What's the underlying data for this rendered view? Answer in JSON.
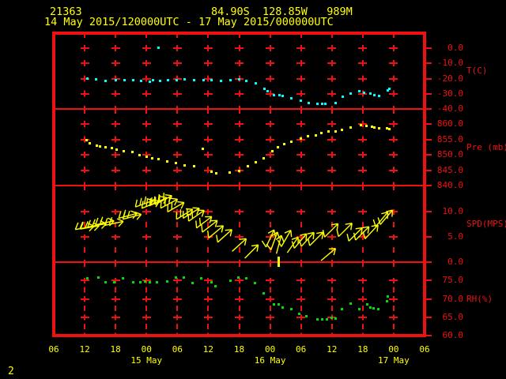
{
  "header": {
    "station_id": "21363",
    "location_line": "84.90S  128.85W   989M",
    "period": "14 May 2015/120000UTC - 17 May 2015/000000UTC"
  },
  "footer": {
    "page_label": "2"
  },
  "colors": {
    "background": "#000000",
    "grid": "#ee1111",
    "axis_text": "#ee1111",
    "time_text": "#ffff00",
    "temperature": "#00ffff",
    "pressure": "#ffff00",
    "wind": "#ffff00",
    "humidity": "#00e000"
  },
  "x_axis": {
    "start_hour": 6,
    "end_hour": 78,
    "step_hours": 6,
    "tick_labels": [
      "06",
      "12",
      "18",
      "00",
      "06",
      "12",
      "18",
      "00",
      "06",
      "12",
      "18",
      "00",
      "06"
    ],
    "date_labels": [
      {
        "text": "15 May",
        "hour": 24
      },
      {
        "text": "16 May",
        "hour": 48
      },
      {
        "text": "17 May",
        "hour": 72
      }
    ]
  },
  "panels": [
    {
      "id": "temperature",
      "unit_label": "T(C)",
      "ylim": [
        -40,
        10
      ],
      "ticks": [
        {
          "v": 0,
          "label": "0.0"
        },
        {
          "v": -10,
          "label": "-10.0"
        },
        {
          "v": -20,
          "label": "-20.0"
        },
        {
          "v": -30,
          "label": "-30.0"
        },
        {
          "v": -40,
          "label": "-40.0"
        }
      ]
    },
    {
      "id": "pressure",
      "unit_label": "Pre (mb)",
      "ylim": [
        840,
        865
      ],
      "ticks": [
        {
          "v": 860,
          "label": "860.0"
        },
        {
          "v": 855,
          "label": "855.0"
        },
        {
          "v": 850,
          "label": "850.0"
        },
        {
          "v": 845,
          "label": "845.0"
        },
        {
          "v": 840,
          "label": "840.0"
        }
      ]
    },
    {
      "id": "wind_speed",
      "unit_label": "SPD(MPS)",
      "ylim": [
        0,
        15.2
      ],
      "ticks": [
        {
          "v": 10,
          "label": "10.0"
        },
        {
          "v": 5,
          "label": "5.0"
        },
        {
          "v": 0,
          "label": "0.0"
        }
      ]
    },
    {
      "id": "humidity",
      "unit_label": "RH(%)",
      "ylim": [
        60,
        80
      ],
      "ticks": [
        {
          "v": 75,
          "label": "75.0"
        },
        {
          "v": 70,
          "label": "70.0"
        },
        {
          "v": 65,
          "label": "65.0"
        },
        {
          "v": 60,
          "label": "60.0"
        }
      ]
    }
  ],
  "chart_data": {
    "type": "scatter",
    "title": "Station meteogram 21363",
    "x_unit": "hours UTC since 14 May 2015 00:00",
    "x_range": [
      6,
      78
    ],
    "series": [
      {
        "name": "T(C)",
        "panel": "temperature",
        "style": "dots",
        "points": [
          [
            12.6,
            -19.9
          ],
          [
            14.2,
            -20.5
          ],
          [
            16.0,
            -21.3
          ],
          [
            18.0,
            -20.8
          ],
          [
            19.7,
            -20.9
          ],
          [
            21.4,
            -21.0
          ],
          [
            22.9,
            -21.7
          ],
          [
            24.6,
            -22.2
          ],
          [
            25.2,
            -21.2
          ],
          [
            26.3,
            0.4
          ],
          [
            26.7,
            -21.7
          ],
          [
            28.2,
            -21.2
          ],
          [
            29.8,
            -20.8
          ],
          [
            31.4,
            -20.5
          ],
          [
            33.3,
            -20.8
          ],
          [
            35.1,
            -21.2
          ],
          [
            36.6,
            -20.8
          ],
          [
            38.4,
            -21.7
          ],
          [
            40.3,
            -20.8
          ],
          [
            42.0,
            -20.5
          ],
          [
            43.4,
            -21.7
          ],
          [
            45.2,
            -22.9
          ],
          [
            46.9,
            -26.9
          ],
          [
            47.6,
            -28.1
          ],
          [
            48.8,
            -30.7
          ],
          [
            49.8,
            -30.9
          ],
          [
            50.4,
            -31.6
          ],
          [
            52.1,
            -33.0
          ],
          [
            53.9,
            -34.7
          ],
          [
            55.5,
            -36.1
          ],
          [
            57.2,
            -36.8
          ],
          [
            58.1,
            -36.5
          ],
          [
            58.8,
            -36.5
          ],
          [
            60.7,
            -36.1
          ],
          [
            62.1,
            -32.1
          ],
          [
            63.7,
            -29.9
          ],
          [
            65.4,
            -28.1
          ],
          [
            66.2,
            -29.2
          ],
          [
            67.5,
            -29.9
          ],
          [
            68.2,
            -30.9
          ],
          [
            69.1,
            -31.6
          ],
          [
            70.9,
            -27.6
          ],
          [
            71.2,
            -26.9
          ]
        ]
      },
      {
        "name": "Pre (mb)",
        "panel": "pressure",
        "style": "dots",
        "points": [
          [
            12.3,
            854.8
          ],
          [
            13.0,
            853.7
          ],
          [
            14.4,
            852.9
          ],
          [
            15.0,
            852.7
          ],
          [
            16.1,
            852.4
          ],
          [
            17.3,
            852.2
          ],
          [
            18.2,
            851.6
          ],
          [
            19.6,
            851.3
          ],
          [
            21.2,
            851.0
          ],
          [
            22.7,
            849.9
          ],
          [
            24.0,
            849.3
          ],
          [
            25.1,
            849.0
          ],
          [
            26.3,
            848.6
          ],
          [
            28.1,
            847.9
          ],
          [
            29.7,
            847.3
          ],
          [
            31.4,
            846.7
          ],
          [
            33.3,
            846.2
          ],
          [
            35.0,
            852.0
          ],
          [
            36.6,
            844.5
          ],
          [
            37.5,
            844.1
          ],
          [
            40.2,
            844.3
          ],
          [
            42.0,
            844.7
          ],
          [
            43.7,
            846.2
          ],
          [
            45.2,
            847.6
          ],
          [
            46.7,
            849.0
          ],
          [
            48.4,
            851.2
          ],
          [
            49.5,
            852.4
          ],
          [
            50.7,
            853.6
          ],
          [
            52.1,
            854.4
          ],
          [
            53.9,
            855.3
          ],
          [
            55.4,
            856.2
          ],
          [
            56.9,
            856.3
          ],
          [
            57.9,
            857.2
          ],
          [
            59.3,
            857.6
          ],
          [
            60.7,
            857.6
          ],
          [
            62.0,
            858.2
          ],
          [
            63.7,
            858.9
          ],
          [
            65.6,
            859.6
          ],
          [
            66.7,
            859.5
          ],
          [
            67.8,
            859.2
          ],
          [
            68.3,
            859.0
          ],
          [
            69.1,
            858.6
          ],
          [
            70.7,
            858.8
          ],
          [
            71.2,
            858.4
          ]
        ]
      },
      {
        "name": "SPD(MPS)",
        "panel": "wind_speed",
        "style": "wind-barbs",
        "calm_marker_hour": 49.6,
        "barbs": [
          [
            12.0,
            6.8,
            170,
            2
          ],
          [
            13.0,
            6.9,
            170,
            2
          ],
          [
            14.4,
            7.3,
            170,
            2
          ],
          [
            15.9,
            7.8,
            168,
            2
          ],
          [
            17.7,
            7.7,
            168,
            2
          ],
          [
            20.4,
            9.2,
            165,
            2
          ],
          [
            21.2,
            9.0,
            165,
            2
          ],
          [
            23.6,
            11.6,
            160,
            3
          ],
          [
            24.8,
            11.4,
            158,
            3
          ],
          [
            26.3,
            12.0,
            155,
            3
          ],
          [
            27.3,
            12.3,
            152,
            3
          ],
          [
            28.4,
            11.6,
            152,
            3
          ],
          [
            29.7,
            10.9,
            150,
            2
          ],
          [
            31.4,
            9.5,
            148,
            2
          ],
          [
            32.7,
            9.7,
            148,
            2
          ],
          [
            33.7,
            9.2,
            145,
            2
          ],
          [
            35.2,
            7.9,
            143,
            2
          ],
          [
            36.3,
            7.1,
            142,
            1
          ],
          [
            37.5,
            6.0,
            140,
            1
          ],
          [
            39.2,
            5.2,
            138,
            1
          ],
          [
            42.0,
            3.4,
            138,
            0
          ],
          [
            44.4,
            2.1,
            135,
            0
          ],
          [
            48.0,
            4.7,
            115,
            1
          ],
          [
            48.8,
            4.2,
            110,
            1
          ],
          [
            49.7,
            3.5,
            105,
            0
          ],
          [
            51.1,
            4.7,
            120,
            1
          ],
          [
            52.4,
            3.4,
            125,
            0
          ],
          [
            53.9,
            4.2,
            130,
            1
          ],
          [
            55.3,
            4.5,
            132,
            1
          ],
          [
            57.0,
            4.6,
            135,
            1
          ],
          [
            59.3,
            1.5,
            140,
            0
          ],
          [
            59.9,
            6.3,
            135,
            1
          ],
          [
            62.6,
            6.4,
            135,
            1
          ],
          [
            64.6,
            5.5,
            135,
            1
          ],
          [
            65.9,
            5.7,
            135,
            1
          ],
          [
            67.7,
            6.0,
            133,
            1
          ],
          [
            69.7,
            8.5,
            130,
            1
          ],
          [
            70.6,
            8.9,
            130,
            1
          ]
        ]
      },
      {
        "name": "RH(%)",
        "panel": "humidity",
        "style": "dots",
        "points": [
          [
            12.6,
            75.5
          ],
          [
            14.6,
            75.8
          ],
          [
            16.1,
            74.6
          ],
          [
            17.7,
            74.6
          ],
          [
            19.5,
            75.5
          ],
          [
            21.4,
            74.6
          ],
          [
            22.8,
            74.6
          ],
          [
            23.8,
            74.8
          ],
          [
            24.7,
            74.6
          ],
          [
            26.0,
            74.6
          ],
          [
            28.1,
            74.8
          ],
          [
            29.7,
            75.8
          ],
          [
            31.3,
            75.7
          ],
          [
            33.0,
            74.4
          ],
          [
            34.7,
            75.5
          ],
          [
            36.6,
            74.6
          ],
          [
            37.4,
            73.5
          ],
          [
            40.3,
            75.0
          ],
          [
            41.9,
            75.7
          ],
          [
            43.4,
            75.5
          ],
          [
            45.1,
            74.4
          ],
          [
            46.8,
            71.4
          ],
          [
            48.7,
            68.4
          ],
          [
            49.7,
            68.5
          ],
          [
            50.4,
            67.7
          ],
          [
            52.1,
            67.1
          ],
          [
            53.6,
            66.0
          ],
          [
            55.0,
            65.3
          ],
          [
            57.2,
            64.4
          ],
          [
            58.1,
            64.4
          ],
          [
            59.0,
            64.4
          ],
          [
            60.0,
            64.9
          ],
          [
            60.7,
            64.6
          ],
          [
            62.0,
            67.2
          ],
          [
            63.7,
            68.7
          ],
          [
            65.4,
            67.1
          ],
          [
            66.8,
            68.4
          ],
          [
            67.5,
            67.7
          ],
          [
            68.1,
            67.5
          ],
          [
            69.0,
            67.2
          ],
          [
            70.7,
            69.4
          ],
          [
            70.9,
            70.7
          ]
        ]
      }
    ]
  }
}
